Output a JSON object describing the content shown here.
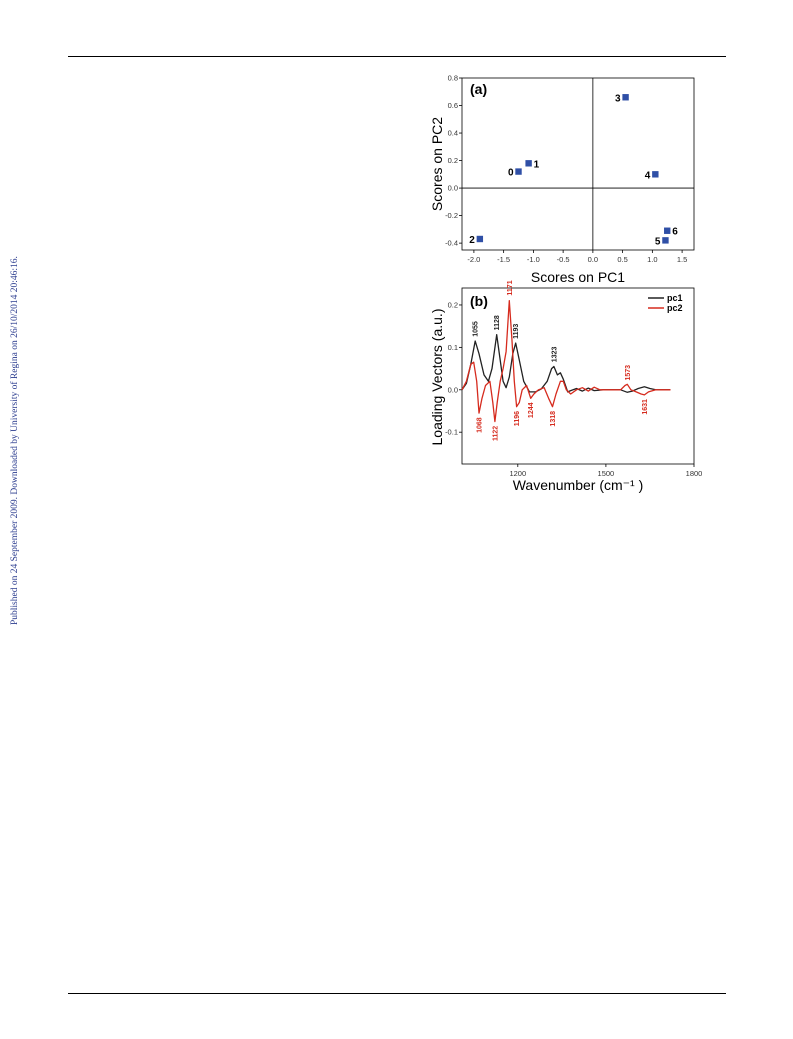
{
  "side_note": "Published on 24 September 2009. Downloaded by University of Regina on 26/10/2014 20:46:16.",
  "chart_data": [
    {
      "type": "scatter",
      "panel_label": "(a)",
      "xlabel": "Scores on PC1",
      "ylabel": "Scores on PC2",
      "xlim": [
        -2.2,
        1.7
      ],
      "ylim": [
        -0.45,
        0.8
      ],
      "x_ticks": [
        "-2.0",
        "-1.5",
        "-1.0",
        "-0.5",
        "0.0",
        "0.5",
        "1.0",
        "1.5"
      ],
      "x_tick_values": [
        -2.0,
        -1.5,
        -1.0,
        -0.5,
        0.0,
        0.5,
        1.0,
        1.5
      ],
      "y_ticks": [
        "-0.4",
        "-0.2",
        "0.0",
        "0.2",
        "0.4",
        "0.6",
        "0.8"
      ],
      "y_tick_values": [
        -0.4,
        -0.2,
        0.0,
        0.2,
        0.4,
        0.6,
        0.8
      ],
      "marker_color": "#2f4fa6",
      "points": [
        {
          "label": "0",
          "x": -1.25,
          "y": 0.12,
          "label_side": "left"
        },
        {
          "label": "1",
          "x": -1.08,
          "y": 0.18,
          "label_side": "right"
        },
        {
          "label": "2",
          "x": -1.9,
          "y": -0.37,
          "label_side": "left"
        },
        {
          "label": "3",
          "x": 0.55,
          "y": 0.66,
          "label_side": "left"
        },
        {
          "label": "4",
          "x": 1.05,
          "y": 0.1,
          "label_side": "left"
        },
        {
          "label": "5",
          "x": 1.22,
          "y": -0.38,
          "label_side": "left"
        },
        {
          "label": "6",
          "x": 1.25,
          "y": -0.31,
          "label_side": "right"
        }
      ]
    },
    {
      "type": "line",
      "panel_label": "(b)",
      "xlabel": "Wavenumber (cm⁻¹ )",
      "ylabel": "Loading Vectors (a.u.)",
      "xlim": [
        1010,
        1800
      ],
      "ylim": [
        -0.175,
        0.24
      ],
      "x_ticks": [
        "1200",
        "1500",
        "1800"
      ],
      "x_tick_values": [
        1200,
        1500,
        1800
      ],
      "y_ticks": [
        "-0.1",
        "0.0",
        "0.1",
        "0.2"
      ],
      "y_tick_values": [
        -0.1,
        0.0,
        0.1,
        0.2
      ],
      "series": [
        {
          "name": "pc1",
          "color": "#222222",
          "points": [
            [
              1010,
              0.0
            ],
            [
              1025,
              0.015
            ],
            [
              1040,
              0.06
            ],
            [
              1055,
              0.115
            ],
            [
              1068,
              0.085
            ],
            [
              1085,
              0.035
            ],
            [
              1100,
              0.02
            ],
            [
              1112,
              0.05
            ],
            [
              1128,
              0.13
            ],
            [
              1140,
              0.07
            ],
            [
              1150,
              0.02
            ],
            [
              1160,
              0.005
            ],
            [
              1171,
              0.03
            ],
            [
              1183,
              0.085
            ],
            [
              1193,
              0.11
            ],
            [
              1205,
              0.07
            ],
            [
              1220,
              0.02
            ],
            [
              1240,
              -0.005
            ],
            [
              1260,
              -0.005
            ],
            [
              1280,
              0.002
            ],
            [
              1300,
              0.02
            ],
            [
              1315,
              0.05
            ],
            [
              1323,
              0.055
            ],
            [
              1335,
              0.035
            ],
            [
              1345,
              0.04
            ],
            [
              1355,
              0.025
            ],
            [
              1370,
              -0.005
            ],
            [
              1380,
              -0.002
            ],
            [
              1400,
              0.003
            ],
            [
              1420,
              -0.003
            ],
            [
              1440,
              0.004
            ],
            [
              1460,
              -0.002
            ],
            [
              1490,
              0.0
            ],
            [
              1520,
              0.0
            ],
            [
              1550,
              0.0
            ],
            [
              1573,
              -0.006
            ],
            [
              1590,
              -0.003
            ],
            [
              1610,
              0.003
            ],
            [
              1631,
              0.007
            ],
            [
              1650,
              0.003
            ],
            [
              1670,
              0.0
            ],
            [
              1700,
              0.0
            ],
            [
              1720,
              0.0
            ]
          ]
        },
        {
          "name": "pc2",
          "color": "#d62b1e",
          "points": [
            [
              1010,
              0.0
            ],
            [
              1025,
              0.02
            ],
            [
              1040,
              0.06
            ],
            [
              1050,
              0.065
            ],
            [
              1060,
              0.02
            ],
            [
              1068,
              -0.055
            ],
            [
              1078,
              -0.02
            ],
            [
              1090,
              0.01
            ],
            [
              1105,
              0.02
            ],
            [
              1115,
              -0.03
            ],
            [
              1122,
              -0.075
            ],
            [
              1130,
              -0.03
            ],
            [
              1140,
              0.02
            ],
            [
              1150,
              0.05
            ],
            [
              1160,
              0.09
            ],
            [
              1171,
              0.21
            ],
            [
              1180,
              0.12
            ],
            [
              1188,
              0.02
            ],
            [
              1196,
              -0.04
            ],
            [
              1205,
              -0.03
            ],
            [
              1215,
              0.0
            ],
            [
              1230,
              0.01
            ],
            [
              1244,
              -0.02
            ],
            [
              1255,
              -0.01
            ],
            [
              1270,
              0.0
            ],
            [
              1290,
              0.005
            ],
            [
              1305,
              -0.02
            ],
            [
              1318,
              -0.04
            ],
            [
              1330,
              -0.01
            ],
            [
              1345,
              0.02
            ],
            [
              1355,
              0.02
            ],
            [
              1365,
              0.0
            ],
            [
              1380,
              -0.01
            ],
            [
              1400,
              0.0
            ],
            [
              1420,
              0.005
            ],
            [
              1440,
              -0.003
            ],
            [
              1460,
              0.006
            ],
            [
              1480,
              0.0
            ],
            [
              1520,
              0.0
            ],
            [
              1550,
              0.0
            ],
            [
              1565,
              0.01
            ],
            [
              1573,
              0.013
            ],
            [
              1585,
              0.0
            ],
            [
              1600,
              -0.004
            ],
            [
              1620,
              -0.01
            ],
            [
              1631,
              -0.012
            ],
            [
              1645,
              -0.005
            ],
            [
              1670,
              0.0
            ],
            [
              1700,
              0.0
            ],
            [
              1720,
              0.0
            ]
          ]
        }
      ],
      "annotations": [
        {
          "text": "1055",
          "x": 1055,
          "y": 0.125,
          "color": "#222222"
        },
        {
          "text": "1128",
          "x": 1128,
          "y": 0.14,
          "color": "#222222"
        },
        {
          "text": "1193",
          "x": 1193,
          "y": 0.12,
          "color": "#222222"
        },
        {
          "text": "1323",
          "x": 1323,
          "y": 0.065,
          "color": "#222222"
        },
        {
          "text": "1171",
          "x": 1171,
          "y": 0.222,
          "color": "#d62b1e"
        },
        {
          "text": "1573",
          "x": 1573,
          "y": 0.022,
          "color": "#d62b1e"
        },
        {
          "text": "1068",
          "x": 1068,
          "y": -0.065,
          "color": "#d62b1e",
          "below": true
        },
        {
          "text": "1122",
          "x": 1122,
          "y": -0.085,
          "color": "#d62b1e",
          "below": true
        },
        {
          "text": "1196",
          "x": 1196,
          "y": -0.05,
          "color": "#d62b1e",
          "below": true
        },
        {
          "text": "1244",
          "x": 1244,
          "y": -0.03,
          "color": "#d62b1e",
          "below": true
        },
        {
          "text": "1318",
          "x": 1318,
          "y": -0.05,
          "color": "#d62b1e",
          "below": true
        },
        {
          "text": "1631",
          "x": 1631,
          "y": -0.022,
          "color": "#d62b1e",
          "below": true
        }
      ],
      "legend_position": "top-right"
    }
  ]
}
